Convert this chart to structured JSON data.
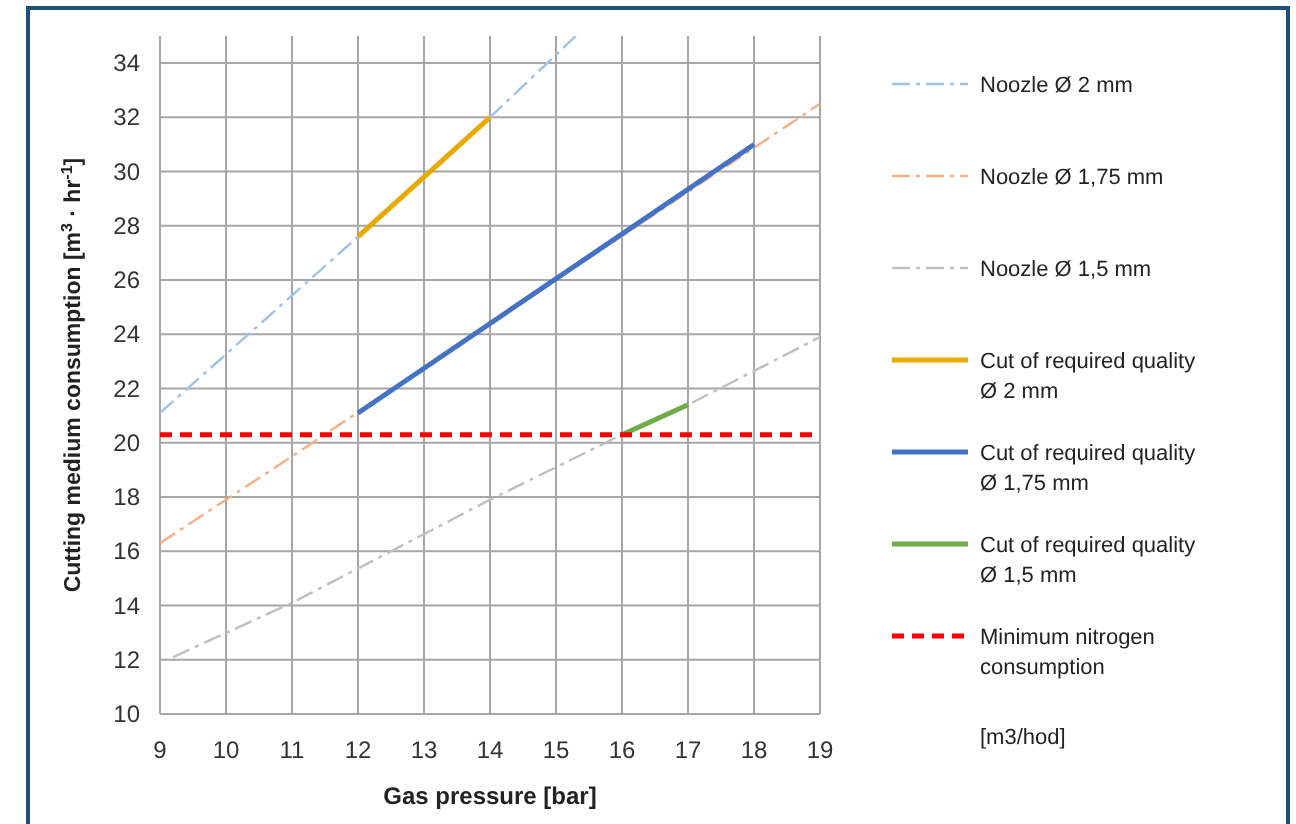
{
  "chart_data": {
    "type": "line",
    "xlabel": "Gas pressure [bar]",
    "ylabel": "Cutting medium consumption [m$^{3}$ · hr$^{-1}$]",
    "xlim": [
      9,
      19
    ],
    "xticks": [
      9,
      10,
      11,
      12,
      13,
      14,
      15,
      16,
      17,
      18,
      19
    ],
    "ylim": [
      10,
      35
    ],
    "yticks": [
      10,
      12,
      14,
      16,
      18,
      20,
      22,
      24,
      26,
      28,
      30,
      32,
      34
    ],
    "grid": true,
    "legend": "right",
    "marker": "none",
    "series": [
      {
        "name": "Noozle Ø 2 mm",
        "color": "#9dc3e6",
        "line_style": "dashed",
        "x": [
          9,
          12,
          14,
          15.3
        ],
        "values": [
          21.1,
          27.6,
          32,
          35
        ]
      },
      {
        "name": "Noozle Ø 1,75 mm",
        "color": "#f4b183",
        "line_style": "dashed",
        "x": [
          9,
          10,
          11,
          19
        ],
        "values": [
          16.3,
          17.9,
          19.5,
          32.5
        ]
      },
      {
        "name": "Noozle Ø 1,5 mm",
        "color": "#bfbfbf",
        "line_style": "dashed",
        "x": [
          9.2,
          11,
          14,
          16,
          17,
          19
        ],
        "values": [
          12.1,
          14.1,
          17.9,
          20.3,
          21.4,
          23.9
        ]
      },
      {
        "name": "Cut of required quality Ø 2 mm",
        "color": "#e8a900",
        "line_style": "solid",
        "x": [
          12,
          14
        ],
        "values": [
          27.6,
          32
        ]
      },
      {
        "name": "Cut of required quality Ø 1,75 mm",
        "color": "#4472c4",
        "line_style": "solid",
        "x": [
          12,
          18
        ],
        "values": [
          21.1,
          31
        ]
      },
      {
        "name": "Cut of required quality Ø 1,5 mm",
        "color": "#70ad47",
        "line_style": "solid",
        "x": [
          16,
          17
        ],
        "values": [
          20.3,
          21.4
        ]
      },
      {
        "name": "Minimum nitrogen consumption",
        "color": "#ff0000",
        "line_style": "dotted",
        "x": [
          9,
          19
        ],
        "values": [
          20.3,
          20.3
        ]
      }
    ],
    "annotations": [
      "[m3/hod]"
    ]
  }
}
